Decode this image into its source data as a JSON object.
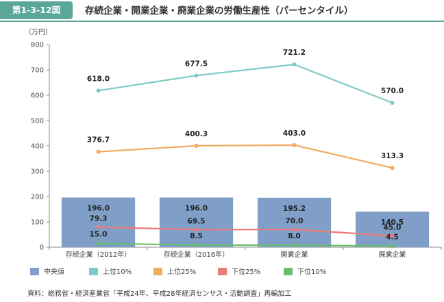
{
  "header": {
    "figure_number": "第1-3-12図",
    "title": "存続企業・開業企業・廃業企業の労働生産性（パーセンタイル）"
  },
  "chart_data": {
    "type": "bar+line",
    "unit_label": "（万円）",
    "categories": [
      "存続企業（2012年）",
      "存続企業（2016年）",
      "開業企業",
      "廃業企業"
    ],
    "ylim": [
      0,
      800
    ],
    "yticks": [
      0,
      100,
      200,
      300,
      400,
      500,
      600,
      700,
      800
    ],
    "bar_series": {
      "name": "中央値",
      "color": "#7f9fc8",
      "values": [
        196.0,
        196.0,
        195.2,
        140.5
      ],
      "labels": [
        "196.0",
        "196.0",
        "195.2",
        "140.5"
      ]
    },
    "line_series": [
      {
        "name": "上位10%",
        "color": "#7fcac6",
        "values": [
          618.0,
          677.5,
          721.2,
          570.0
        ],
        "labels": [
          "618.0",
          "677.5",
          "721.2",
          "570.0"
        ]
      },
      {
        "name": "上位25%",
        "color": "#f2aa5e",
        "values": [
          376.7,
          400.3,
          403.0,
          313.3
        ],
        "labels": [
          "376.7",
          "400.3",
          "403.0",
          "313.3"
        ]
      },
      {
        "name": "下位25%",
        "color": "#ec7a76",
        "values": [
          79.3,
          69.5,
          70.0,
          45.0
        ],
        "labels": [
          "79.3",
          "69.5",
          "70.0",
          "45.0"
        ]
      },
      {
        "name": "下位10%",
        "color": "#6bbd6b",
        "values": [
          15.0,
          8.5,
          8.0,
          4.5
        ],
        "labels": [
          "15.0",
          "8.5",
          "8.0",
          "4.5"
        ]
      }
    ]
  },
  "source": "資料：総務省・経済産業省「平成24年、平成28年経済センサス・活動調査」再編加工"
}
